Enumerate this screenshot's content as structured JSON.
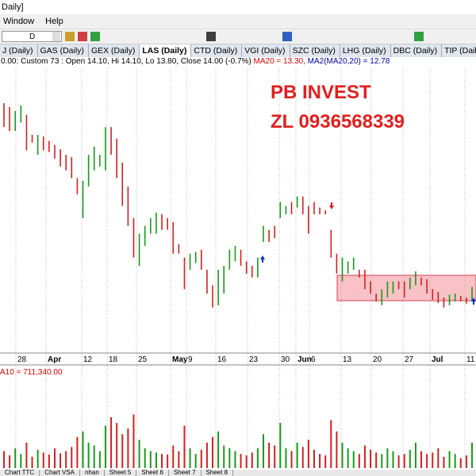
{
  "window_title": "Daily]",
  "menu": [
    "Window",
    "Help"
  ],
  "interval": "D",
  "tabs": [
    "J (Daily)",
    "GAS (Daily)",
    "GEX (Daily)",
    "LAS (Daily)",
    "CTD (Daily)",
    "VGI (Daily)",
    "SZC (Daily)",
    "LHG (Daily)",
    "DBC (Daily)",
    "TIP (Daily)"
  ],
  "active_tab": 3,
  "info": {
    "quote": "0.00: Custom 73 : Open 14.10, Hi 14.10, Lo 13.80, Close 14.00 (-0.7%) ",
    "ma20": "MA20 = 13.30, ",
    "ma2": "MA2(MA20,20) = 12.78"
  },
  "volume_label": "A10 = 711,340.00",
  "sheets": [
    "Chart TTC",
    "Chart VSA",
    "nhan",
    "Sheet 5",
    "Sheet 6",
    "Sheet 7",
    "Sheet 8"
  ],
  "chart_data": {
    "type": "ohlc",
    "annotations": [
      "PB INVEST",
      "ZL 0936568339"
    ],
    "date_labels": [
      "28",
      "Apr",
      "12",
      "18",
      "25",
      "May",
      "9",
      "16",
      "23",
      "30",
      "Jun",
      "6",
      "13",
      "20",
      "27",
      "Jul",
      "11"
    ],
    "ylim": [
      13.04,
      18.17
    ],
    "volume_lim": [
      0,
      3600000
    ],
    "up_color": "#1a9a1a",
    "down_color": "#d42020",
    "high": [
      17.54,
      17.47,
      17.4,
      17.5,
      17.33,
      16.97,
      16.97,
      16.94,
      16.86,
      16.79,
      16.71,
      16.61,
      16.57,
      16.19,
      16.14,
      16.61,
      16.76,
      16.61,
      17.11,
      17.11,
      16.9,
      16.47,
      16.04,
      15.47,
      15.19,
      15.33,
      15.47,
      15.57,
      15.54,
      15.47,
      15.4,
      15,
      14.76,
      14.83,
      14.86,
      14.9,
      14.54,
      14.26,
      14.54,
      14.61,
      14.9,
      14.97,
      14.9,
      14.69,
      14.61,
      14.76,
      15.33,
      15.26,
      15.33,
      15.76,
      15.69,
      15.76,
      15.86,
      15.86,
      15.69,
      15.76,
      15.66,
      15.61,
      15.26,
      14.83,
      14.76,
      14.69,
      14.76,
      14.54,
      14.54,
      14.33,
      14.11,
      14.19,
      14.33,
      14.33,
      14.33,
      14.33,
      14.4,
      14.51,
      14.4,
      14.37,
      14.19,
      14.14,
      14.04,
      14.09,
      14.11,
      14.07,
      14.04,
      14.23
    ],
    "low": [
      17.11,
      17.04,
      17.04,
      17.19,
      16.69,
      16.83,
      16.61,
      16.69,
      16.66,
      16.54,
      16.4,
      16.33,
      16.19,
      15.9,
      15.47,
      16.04,
      16.33,
      16.4,
      16.33,
      16.61,
      16.19,
      15.69,
      15.33,
      14.76,
      14.61,
      14.97,
      15.19,
      15.19,
      15.26,
      15.26,
      14.83,
      14.83,
      14.19,
      14.54,
      14.66,
      14.54,
      14.11,
      13.86,
      13.9,
      14.11,
      14.54,
      14.69,
      14.61,
      14.47,
      14.4,
      14.4,
      15.04,
      15.04,
      15.11,
      15.47,
      15.54,
      15.54,
      15.66,
      15.54,
      15.19,
      15.54,
      15.54,
      15.54,
      14.76,
      14.47,
      14.33,
      14.47,
      14.54,
      14.4,
      14.19,
      14.11,
      13.97,
      13.9,
      14.04,
      14.11,
      14.19,
      14.04,
      14.19,
      14.26,
      14.26,
      14.11,
      14,
      13.94,
      13.86,
      13.9,
      13.97,
      13.97,
      13.93,
      13.97
    ],
    "up": [
      false,
      false,
      true,
      true,
      false,
      false,
      true,
      false,
      false,
      false,
      false,
      false,
      false,
      false,
      true,
      true,
      true,
      true,
      true,
      false,
      false,
      false,
      false,
      false,
      true,
      true,
      true,
      true,
      false,
      false,
      false,
      false,
      false,
      true,
      true,
      false,
      false,
      false,
      true,
      true,
      true,
      true,
      false,
      false,
      false,
      true,
      true,
      false,
      false,
      true,
      true,
      false,
      true,
      false,
      false,
      false,
      false,
      false,
      false,
      false,
      true,
      true,
      true,
      false,
      false,
      false,
      false,
      true,
      true,
      true,
      false,
      false,
      true,
      true,
      false,
      false,
      false,
      false,
      false,
      true,
      true,
      false,
      false,
      true
    ],
    "volume": [
      600000,
      450000,
      700000,
      500000,
      900000,
      400000,
      650000,
      550000,
      480000,
      700000,
      520000,
      600000,
      750000,
      1100000,
      1300000,
      900000,
      800000,
      600000,
      1500000,
      1800000,
      1600000,
      1200000,
      1400000,
      1900000,
      1000000,
      700000,
      600000,
      550000,
      500000,
      480000,
      800000,
      600000,
      1500000,
      700000,
      500000,
      650000,
      900000,
      1100000,
      1300000,
      800000,
      700000,
      600000,
      500000,
      450000,
      550000,
      700000,
      1200000,
      900000,
      800000,
      1600000,
      700000,
      600000,
      900000,
      750000,
      1000000,
      650000,
      500000,
      450000,
      1700000,
      1300000,
      900000,
      700000,
      600000,
      500000,
      800000,
      650000,
      550000,
      500000,
      700000,
      600000,
      450000,
      500000,
      650000,
      900000,
      600000,
      500000,
      550000,
      700000,
      400000,
      600000,
      500000,
      350000,
      450000,
      900000
    ]
  }
}
